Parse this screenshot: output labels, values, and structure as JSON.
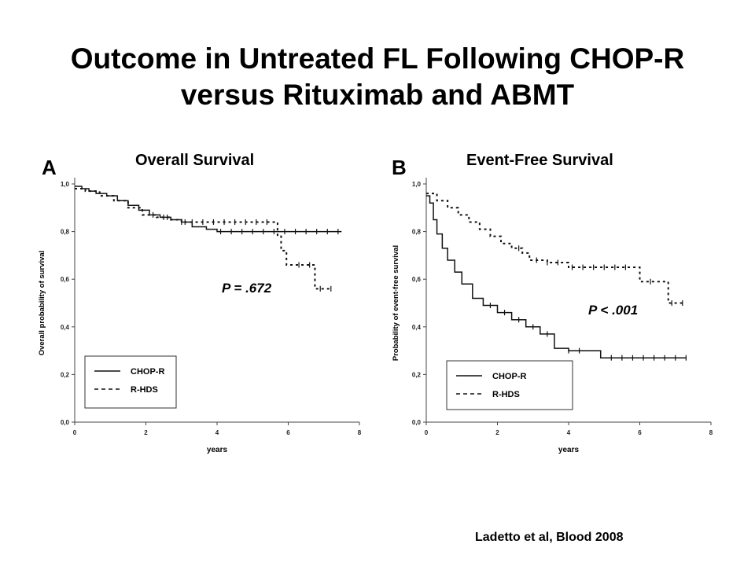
{
  "slide": {
    "title_line1": "Outcome in Untreated FL Following CHOP-R",
    "title_line2": "versus Rituximab and ABMT",
    "citation": "Ladetto et al, Blood 2008"
  },
  "chart_data": [
    {
      "type": "line",
      "panel_letter": "A",
      "title": "Overall Survival",
      "xlabel": "years",
      "ylabel": "Overall probability of survival",
      "xlim": [
        0,
        8
      ],
      "ylim": [
        0,
        1
      ],
      "xticks": [
        "0",
        "2",
        "4",
        "6",
        "8"
      ],
      "yticks": [
        "0,0",
        "0,2",
        "0,4",
        "0,6",
        "0,8",
        "1,0"
      ],
      "annotation": "P = .672",
      "legend": {
        "placement": "bottom-left",
        "entries": [
          "CHOP-R",
          "R-HDS"
        ]
      },
      "series": [
        {
          "name": "CHOP-R",
          "style": "solid",
          "x": [
            0,
            0.2,
            0.4,
            0.6,
            0.9,
            1.2,
            1.5,
            1.8,
            2.1,
            2.4,
            2.7,
            3.0,
            3.3,
            3.7,
            4.0,
            7.5
          ],
          "y": [
            0.99,
            0.98,
            0.97,
            0.96,
            0.95,
            0.93,
            0.91,
            0.89,
            0.87,
            0.86,
            0.85,
            0.84,
            0.82,
            0.81,
            0.8,
            0.8
          ],
          "censor_x": [
            2.5,
            3.1,
            4.1,
            4.4,
            4.7,
            5.0,
            5.3,
            5.6,
            5.9,
            6.2,
            6.5,
            6.8,
            7.1,
            7.4
          ]
        },
        {
          "name": "R-HDS",
          "style": "dashed",
          "x": [
            0,
            0.3,
            0.7,
            1.1,
            1.5,
            1.9,
            2.3,
            2.7,
            3.0,
            5.6,
            5.7,
            5.8,
            5.95,
            6.75,
            7.2
          ],
          "y": [
            0.98,
            0.97,
            0.95,
            0.93,
            0.9,
            0.87,
            0.86,
            0.85,
            0.84,
            0.84,
            0.78,
            0.72,
            0.66,
            0.56,
            0.56
          ],
          "censor_x": [
            2.2,
            2.6,
            3.0,
            3.3,
            3.6,
            3.9,
            4.2,
            4.5,
            4.8,
            5.1,
            5.4,
            6.3,
            6.6,
            6.9,
            7.2
          ]
        }
      ]
    },
    {
      "type": "line",
      "panel_letter": "B",
      "title": "Event-Free Survival",
      "xlabel": "years",
      "ylabel": "Probability of event-free survival",
      "xlim": [
        0,
        8
      ],
      "ylim": [
        0,
        1
      ],
      "xticks": [
        "0",
        "2",
        "4",
        "6",
        "8"
      ],
      "yticks": [
        "0,0",
        "0,2",
        "0,4",
        "0,6",
        "0,8",
        "1,0"
      ],
      "annotation": "P < .001",
      "legend": {
        "placement": "bottom-left",
        "entries": [
          "CHOP-R",
          "R-HDS"
        ]
      },
      "series": [
        {
          "name": "CHOP-R",
          "style": "solid",
          "x": [
            0,
            0.1,
            0.2,
            0.3,
            0.45,
            0.6,
            0.8,
            1.0,
            1.3,
            1.6,
            2.0,
            2.4,
            2.8,
            3.2,
            3.6,
            4.0,
            4.9,
            7.3
          ],
          "y": [
            0.95,
            0.92,
            0.85,
            0.79,
            0.73,
            0.68,
            0.63,
            0.58,
            0.52,
            0.49,
            0.46,
            0.43,
            0.4,
            0.37,
            0.31,
            0.3,
            0.27,
            0.27
          ],
          "censor_x": [
            1.8,
            2.2,
            2.6,
            3.0,
            3.4,
            4.0,
            4.3,
            5.2,
            5.5,
            5.8,
            6.1,
            6.4,
            6.7,
            7.0,
            7.3
          ]
        },
        {
          "name": "R-HDS",
          "style": "dashed",
          "x": [
            0,
            0.3,
            0.6,
            0.9,
            1.2,
            1.5,
            1.8,
            2.1,
            2.4,
            2.7,
            2.9,
            3.4,
            4.0,
            5.9,
            6.0,
            6.7,
            6.8,
            7.2
          ],
          "y": [
            0.96,
            0.93,
            0.9,
            0.87,
            0.84,
            0.81,
            0.78,
            0.75,
            0.73,
            0.71,
            0.68,
            0.67,
            0.65,
            0.65,
            0.59,
            0.59,
            0.5,
            0.5
          ],
          "censor_x": [
            2.6,
            3.1,
            3.4,
            3.7,
            4.1,
            4.4,
            4.7,
            5.0,
            5.3,
            5.6,
            6.3,
            6.9,
            7.2
          ]
        }
      ]
    }
  ]
}
